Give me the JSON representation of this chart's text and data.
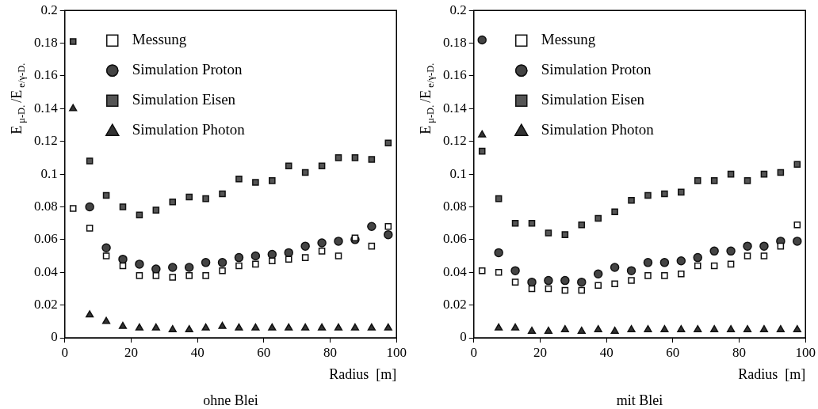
{
  "chart_data": [
    {
      "type": "scatter",
      "annotations": [
        "ohne Blei"
      ],
      "xlabel": "Radius  [m]",
      "ylabel": "E$_{μ-D.}$/E$_{e/γ-D.}$",
      "x": [
        2.5,
        7.5,
        12.5,
        17.5,
        22.5,
        27.5,
        32.5,
        37.5,
        42.5,
        47.5,
        52.5,
        57.5,
        62.5,
        67.5,
        72.5,
        77.5,
        82.5,
        87.5,
        92.5,
        97.5
      ],
      "xlim": [
        0,
        100
      ],
      "xticks": [
        0,
        20,
        40,
        60,
        80,
        100
      ],
      "ylim": [
        0,
        0.2
      ],
      "yticks": [
        0,
        0.02,
        0.04,
        0.06,
        0.08,
        0.1,
        0.12,
        0.14,
        0.16,
        0.18,
        0.2
      ],
      "legend": "top left",
      "grid": false,
      "series": [
        {
          "name": "Messung",
          "color": "#ffffff",
          "marker": "square",
          "values": [
            0.079,
            0.067,
            0.05,
            0.044,
            0.038,
            0.038,
            0.037,
            0.038,
            0.038,
            0.041,
            0.044,
            0.045,
            0.047,
            0.048,
            0.049,
            0.053,
            0.05,
            0.061,
            0.056,
            0.068
          ]
        },
        {
          "name": "Simulation Proton",
          "color": "#444444",
          "marker": "circle",
          "values": [
            null,
            0.08,
            0.055,
            0.048,
            0.045,
            0.042,
            0.043,
            0.043,
            0.046,
            0.046,
            0.049,
            0.05,
            0.051,
            0.052,
            0.056,
            0.058,
            0.059,
            0.06,
            0.068,
            0.063
          ]
        },
        {
          "name": "Simulation Eisen",
          "color": "#555555",
          "marker": "square",
          "values": [
            0.181,
            0.108,
            0.087,
            0.08,
            0.075,
            0.078,
            0.083,
            0.086,
            0.085,
            0.088,
            0.097,
            0.095,
            0.096,
            0.105,
            0.101,
            0.105,
            0.11,
            0.11,
            0.109,
            0.119
          ]
        },
        {
          "name": "Simulation Photon",
          "color": "#333333",
          "marker": "triangle",
          "values": [
            0.14,
            0.014,
            0.01,
            0.007,
            0.006,
            0.006,
            0.005,
            0.005,
            0.006,
            0.007,
            0.006,
            0.006,
            0.006,
            0.006,
            0.006,
            0.006,
            0.006,
            0.006,
            0.006,
            0.006
          ]
        }
      ]
    },
    {
      "type": "scatter",
      "annotations": [
        "mit Blei"
      ],
      "xlabel": "Radius  [m]",
      "ylabel": "E$_{μ-D.}$/E$_{e/γ-D.}$",
      "x": [
        2.5,
        7.5,
        12.5,
        17.5,
        22.5,
        27.5,
        32.5,
        37.5,
        42.5,
        47.5,
        52.5,
        57.5,
        62.5,
        67.5,
        72.5,
        77.5,
        82.5,
        87.5,
        92.5,
        97.5
      ],
      "xlim": [
        0,
        100
      ],
      "xticks": [
        0,
        20,
        40,
        60,
        80,
        100
      ],
      "ylim": [
        0,
        0.2
      ],
      "yticks": [
        0,
        0.02,
        0.04,
        0.06,
        0.08,
        0.1,
        0.12,
        0.14,
        0.16,
        0.18,
        0.2
      ],
      "legend": "top left",
      "grid": false,
      "series": [
        {
          "name": "Messung",
          "color": "#ffffff",
          "marker": "square",
          "values": [
            0.041,
            0.04,
            0.034,
            0.03,
            0.03,
            0.029,
            0.029,
            0.032,
            0.033,
            0.035,
            0.038,
            0.038,
            0.039,
            0.044,
            0.044,
            0.045,
            0.05,
            0.05,
            0.056,
            0.069
          ]
        },
        {
          "name": "Simulation Proton",
          "color": "#444444",
          "marker": "circle",
          "values": [
            0.182,
            0.052,
            0.041,
            0.034,
            0.035,
            0.035,
            0.034,
            0.039,
            0.043,
            0.041,
            0.046,
            0.046,
            0.047,
            0.049,
            0.053,
            0.053,
            0.056,
            0.056,
            0.059,
            0.059
          ]
        },
        {
          "name": "Simulation Eisen",
          "color": "#555555",
          "marker": "square",
          "values": [
            0.114,
            0.085,
            0.07,
            0.07,
            0.064,
            0.063,
            0.069,
            0.073,
            0.077,
            0.084,
            0.087,
            0.088,
            0.089,
            0.096,
            0.096,
            0.1,
            0.096,
            0.1,
            0.101,
            0.106
          ]
        },
        {
          "name": "Simulation Photon",
          "color": "#333333",
          "marker": "triangle",
          "values": [
            0.124,
            0.006,
            0.006,
            0.004,
            0.004,
            0.005,
            0.004,
            0.005,
            0.004,
            0.005,
            0.005,
            0.005,
            0.005,
            0.005,
            0.005,
            0.005,
            0.005,
            0.005,
            0.005,
            0.005
          ]
        }
      ]
    }
  ]
}
